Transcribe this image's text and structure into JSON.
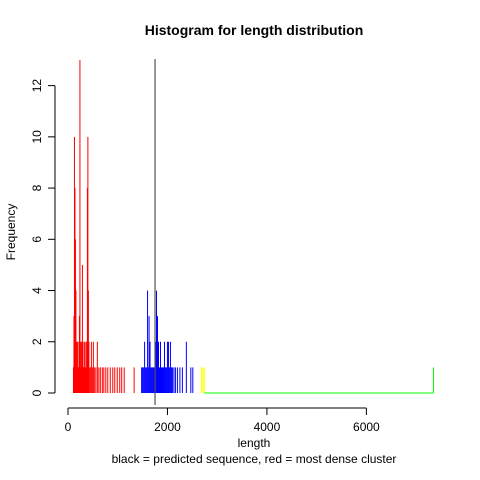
{
  "chart_data": {
    "type": "histogram",
    "title": "Histogram for length distribution",
    "xlabel": "length",
    "ylabel": "Frequency",
    "subtitle": "black = predicted sequence, red = most dense cluster",
    "xlim": [
      0,
      7400
    ],
    "ylim": [
      0,
      13
    ],
    "x_ticks": [
      0,
      2000,
      4000,
      6000
    ],
    "y_ticks": [
      0,
      2,
      4,
      6,
      8,
      10,
      12
    ],
    "predicted_sequence_length": 1750,
    "series": [
      {
        "color": "#ff0000",
        "bins": [
          {
            "x": 110,
            "count": 1
          },
          {
            "x": 120,
            "count": 3
          },
          {
            "x": 130,
            "count": 10
          },
          {
            "x": 140,
            "count": 8
          },
          {
            "x": 150,
            "count": 6
          },
          {
            "x": 160,
            "count": 4
          },
          {
            "x": 170,
            "count": 2
          },
          {
            "x": 180,
            "count": 1
          },
          {
            "x": 190,
            "count": 2
          },
          {
            "x": 200,
            "count": 1
          },
          {
            "x": 210,
            "count": 1
          },
          {
            "x": 220,
            "count": 2
          },
          {
            "x": 230,
            "count": 3
          },
          {
            "x": 240,
            "count": 13
          },
          {
            "x": 250,
            "count": 2
          },
          {
            "x": 260,
            "count": 1
          },
          {
            "x": 270,
            "count": 2
          },
          {
            "x": 280,
            "count": 1
          },
          {
            "x": 290,
            "count": 5
          },
          {
            "x": 300,
            "count": 2
          },
          {
            "x": 310,
            "count": 1
          },
          {
            "x": 320,
            "count": 1
          },
          {
            "x": 330,
            "count": 2
          },
          {
            "x": 340,
            "count": 1
          },
          {
            "x": 350,
            "count": 1
          },
          {
            "x": 360,
            "count": 2
          },
          {
            "x": 370,
            "count": 1
          },
          {
            "x": 380,
            "count": 2
          },
          {
            "x": 390,
            "count": 8
          },
          {
            "x": 400,
            "count": 10
          },
          {
            "x": 410,
            "count": 4
          },
          {
            "x": 420,
            "count": 2
          },
          {
            "x": 430,
            "count": 1
          },
          {
            "x": 450,
            "count": 1
          },
          {
            "x": 470,
            "count": 2
          },
          {
            "x": 490,
            "count": 1
          },
          {
            "x": 510,
            "count": 2
          },
          {
            "x": 530,
            "count": 1
          },
          {
            "x": 560,
            "count": 1
          },
          {
            "x": 590,
            "count": 2
          },
          {
            "x": 620,
            "count": 1
          },
          {
            "x": 650,
            "count": 1
          },
          {
            "x": 690,
            "count": 1
          },
          {
            "x": 720,
            "count": 1
          },
          {
            "x": 760,
            "count": 1
          },
          {
            "x": 800,
            "count": 1
          },
          {
            "x": 850,
            "count": 1
          },
          {
            "x": 900,
            "count": 1
          },
          {
            "x": 940,
            "count": 1
          },
          {
            "x": 990,
            "count": 1
          },
          {
            "x": 1040,
            "count": 1
          },
          {
            "x": 1080,
            "count": 1
          },
          {
            "x": 1130,
            "count": 1
          },
          {
            "x": 1330,
            "count": 1
          }
        ]
      },
      {
        "color": "#0000ff",
        "bins": [
          {
            "x": 1480,
            "count": 1
          },
          {
            "x": 1500,
            "count": 1
          },
          {
            "x": 1520,
            "count": 1
          },
          {
            "x": 1540,
            "count": 2
          },
          {
            "x": 1560,
            "count": 1
          },
          {
            "x": 1580,
            "count": 1
          },
          {
            "x": 1600,
            "count": 4
          },
          {
            "x": 1620,
            "count": 1
          },
          {
            "x": 1630,
            "count": 3
          },
          {
            "x": 1650,
            "count": 2
          },
          {
            "x": 1670,
            "count": 1
          },
          {
            "x": 1690,
            "count": 1
          },
          {
            "x": 1710,
            "count": 1
          },
          {
            "x": 1730,
            "count": 1
          },
          {
            "x": 1760,
            "count": 2
          },
          {
            "x": 1780,
            "count": 4
          },
          {
            "x": 1800,
            "count": 3
          },
          {
            "x": 1820,
            "count": 2
          },
          {
            "x": 1840,
            "count": 1
          },
          {
            "x": 1860,
            "count": 2
          },
          {
            "x": 1880,
            "count": 1
          },
          {
            "x": 1900,
            "count": 1
          },
          {
            "x": 1920,
            "count": 1
          },
          {
            "x": 1940,
            "count": 2
          },
          {
            "x": 1960,
            "count": 1
          },
          {
            "x": 1980,
            "count": 1
          },
          {
            "x": 2000,
            "count": 2
          },
          {
            "x": 2020,
            "count": 2
          },
          {
            "x": 2040,
            "count": 1
          },
          {
            "x": 2060,
            "count": 2
          },
          {
            "x": 2080,
            "count": 1
          },
          {
            "x": 2100,
            "count": 1
          },
          {
            "x": 2130,
            "count": 1
          },
          {
            "x": 2160,
            "count": 1
          },
          {
            "x": 2200,
            "count": 1
          },
          {
            "x": 2250,
            "count": 1
          },
          {
            "x": 2300,
            "count": 1
          },
          {
            "x": 2380,
            "count": 2
          },
          {
            "x": 2470,
            "count": 1
          },
          {
            "x": 2510,
            "count": 1
          }
        ]
      },
      {
        "color": "#ffff00",
        "bins": [
          {
            "x": 2680,
            "count": 1
          },
          {
            "x": 2710,
            "count": 1
          },
          {
            "x": 2740,
            "count": 1
          }
        ]
      },
      {
        "color": "#00ff00",
        "bins": [
          {
            "x": 7350,
            "count": 1
          }
        ]
      }
    ]
  }
}
